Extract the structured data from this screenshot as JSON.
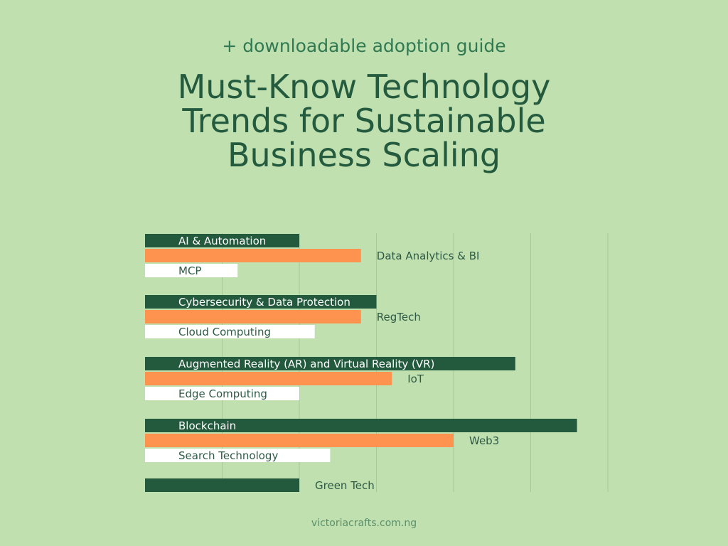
{
  "subtitle": "+ downloadable adoption guide",
  "title_lines": [
    "Must-Know Technology",
    "Trends for Sustainable",
    "Business Scaling"
  ],
  "footer": "victoriacrafts.com.ng",
  "colors": {
    "dark": "#235a3e",
    "orange": "#fd934f",
    "white": "#ffffff",
    "background": "#c1e0b0"
  },
  "chart_data": {
    "type": "bar",
    "orientation": "horizontal",
    "grid": true,
    "xlim": [
      0,
      6
    ],
    "bars": [
      {
        "label": "AI & Automation",
        "value": 2.0,
        "color": "dark",
        "label_position": "inside"
      },
      {
        "label": "Data Analytics & BI",
        "value": 2.8,
        "color": "orange",
        "label_position": "outside"
      },
      {
        "label": "MCP",
        "value": 1.2,
        "color": "white",
        "label_position": "inside"
      },
      {
        "label": "Cybersecurity & Data Protection",
        "value": 3.0,
        "color": "dark",
        "label_position": "inside"
      },
      {
        "label": "RegTech",
        "value": 2.8,
        "color": "orange",
        "label_position": "outside"
      },
      {
        "label": "Cloud Computing",
        "value": 2.2,
        "color": "white",
        "label_position": "inside"
      },
      {
        "label": "Augmented Reality (AR) and Virtual Reality (VR)",
        "value": 4.8,
        "color": "dark",
        "label_position": "inside"
      },
      {
        "label": "IoT",
        "value": 3.2,
        "color": "orange",
        "label_position": "outside"
      },
      {
        "label": "Edge Computing",
        "value": 2.0,
        "color": "white",
        "label_position": "inside"
      },
      {
        "label": "Blockchain",
        "value": 5.6,
        "color": "dark",
        "label_position": "inside"
      },
      {
        "label": "Web3",
        "value": 4.0,
        "color": "orange",
        "label_position": "outside"
      },
      {
        "label": "Search Technology",
        "value": 2.4,
        "color": "white",
        "label_position": "inside"
      },
      {
        "label": "Green Tech",
        "value": 2.0,
        "color": "dark",
        "label_position": "outside"
      }
    ]
  }
}
